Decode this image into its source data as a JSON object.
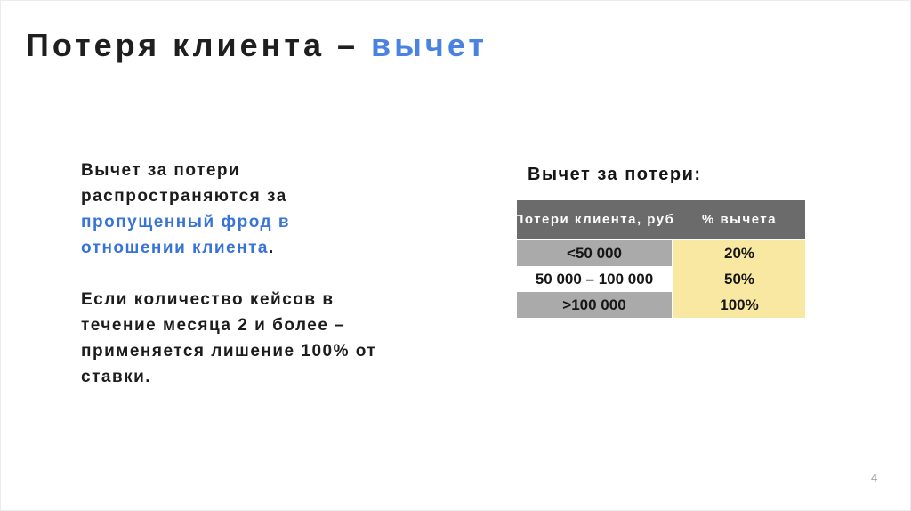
{
  "slide": {
    "title": {
      "main": "Потеря клиента – ",
      "accent": "вычет"
    },
    "body": {
      "p1_normal": "Вычет за потери распространяются за ",
      "p1_accent": "пропущенный фрод в отношении клиента",
      "p1_period": ".",
      "p2": "Если количество кейсов в течение месяца 2 и более – применяется лишение 100% от ставки."
    },
    "table": {
      "caption": "Вычет за потери:",
      "headers": [
        "Потери клиента, руб",
        "% вычета"
      ],
      "rows": [
        {
          "loss": "<50 000",
          "deduction": "20%"
        },
        {
          "loss": "50 000 – 100 000",
          "deduction": "50%"
        },
        {
          "loss": ">100 000",
          "deduction": "100%"
        }
      ]
    },
    "page_number": "4",
    "colors": {
      "title_accent_blue": "#4a82e2",
      "body_accent_blue": "#3873d9",
      "table_header_gray": "#6b6b6b",
      "table_row_gray": "#aaaaaa",
      "table_cell_yellow": "#f9e8a1",
      "page_number_gray": "#a3a3a3"
    }
  }
}
